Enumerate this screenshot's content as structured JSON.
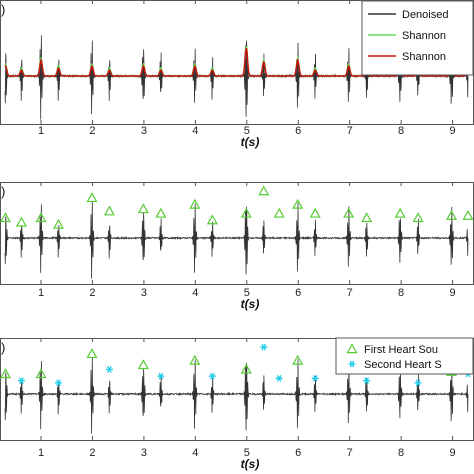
{
  "chart_data": [
    {
      "type": "line",
      "panel_letter": ")",
      "xlabel": "t(s)",
      "x_ticks": [
        1,
        2,
        3,
        4,
        5,
        6,
        7,
        8,
        9
      ],
      "xlim": [
        0.3,
        9.3
      ],
      "ylim": [
        -1,
        1
      ],
      "legend": {
        "placement": "top-right",
        "entries": [
          {
            "name": "Denoised",
            "color": "#333333"
          },
          {
            "name": "Shannon",
            "color": "#66dd55"
          },
          {
            "name": "Shannon",
            "color": "#cc1111"
          }
        ]
      },
      "s1_times": [
        0.31,
        1.0,
        1.99,
        2.99,
        3.99,
        4.99,
        5.99,
        6.98,
        7.98,
        8.98
      ],
      "s2_times": [
        0.62,
        1.34,
        2.33,
        3.33,
        4.33,
        5.33,
        6.33,
        7.33,
        8.33,
        9.3
      ],
      "envelope_peaks_green": [
        0.3,
        0.2,
        0.45,
        0.25,
        0.3,
        0.2,
        0.3,
        0.2,
        0.3,
        0.2,
        0.75,
        0.4,
        0.45,
        0.2,
        0.3,
        0.2,
        0.3,
        0.2,
        0.3
      ],
      "envelope_peaks_red": [
        0.25,
        0.15,
        0.4,
        0.2,
        0.25,
        0.15,
        0.25,
        0.15,
        0.25,
        0.15,
        0.7,
        0.35,
        0.4,
        0.15,
        0.25,
        0.15,
        0.25,
        0.15,
        0.25
      ]
    },
    {
      "type": "line",
      "panel_letter": ")",
      "xlabel": "t(s)",
      "x_ticks": [
        1,
        2,
        3,
        4,
        5,
        6,
        7,
        8,
        9
      ],
      "xlim": [
        0.3,
        9.3
      ],
      "ylim": [
        -1,
        1
      ],
      "marker_times": [
        0.31,
        0.62,
        1.0,
        1.34,
        1.99,
        2.33,
        2.99,
        3.33,
        3.99,
        4.33,
        4.99,
        5.33,
        5.63,
        5.99,
        6.33,
        6.98,
        7.33,
        7.98,
        8.33,
        8.98,
        9.3
      ],
      "marker_levels": [
        0.45,
        0.35,
        0.45,
        0.3,
        0.9,
        0.6,
        0.65,
        0.55,
        0.75,
        0.4,
        0.55,
        1.05,
        0.55,
        0.75,
        0.55,
        0.55,
        0.45,
        0.55,
        0.45,
        0.5,
        0.5
      ],
      "marker_color": "#55cc33"
    },
    {
      "type": "line",
      "panel_letter": ")",
      "xlabel": "t(s)",
      "x_ticks": [
        1,
        2,
        3,
        4,
        5,
        6,
        7,
        8,
        9
      ],
      "xlim": [
        0.3,
        9.3
      ],
      "ylim": [
        -1,
        1
      ],
      "legend": {
        "placement": "top-right",
        "entries": [
          {
            "name": "First Heart Sou",
            "color": "#55cc33",
            "marker": "triangle"
          },
          {
            "name": "Second Heart S",
            "color": "#22ccee",
            "marker": "asterisk"
          }
        ]
      },
      "first_marker_times": [
        0.31,
        1.0,
        1.99,
        2.99,
        3.99,
        4.99,
        5.99,
        6.98,
        7.98,
        8.98
      ],
      "first_marker_levels": [
        0.45,
        0.45,
        0.9,
        0.65,
        0.75,
        0.55,
        0.75,
        0.55,
        0.55,
        0.5
      ],
      "second_marker_times": [
        0.62,
        1.34,
        2.33,
        3.33,
        4.33,
        5.33,
        5.63,
        6.33,
        7.33,
        8.33,
        9.3
      ],
      "second_marker_levels": [
        0.3,
        0.25,
        0.55,
        0.4,
        0.4,
        1.05,
        0.35,
        0.35,
        0.3,
        0.25,
        0.45
      ],
      "first_marker_color": "#55cc33",
      "second_marker_color": "#22ccee"
    }
  ]
}
